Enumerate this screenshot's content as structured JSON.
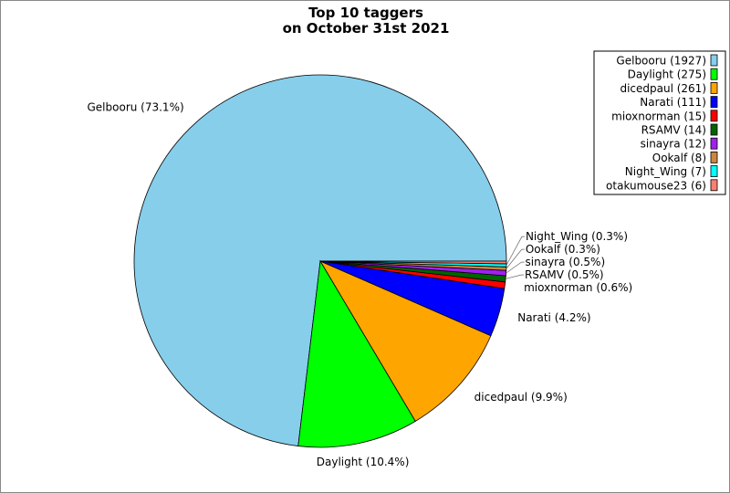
{
  "chart_data": {
    "type": "pie",
    "title": [
      "Top 10 taggers",
      "on October 31st 2021"
    ],
    "start_angle": "east, counter-clockwise",
    "legend_position": "top-right",
    "slices": [
      {
        "name": "Gelbooru",
        "value": 1927,
        "color": "#87CEEB",
        "legend": "Gelbooru (1927)",
        "label": "Gelbooru (73.1%)"
      },
      {
        "name": "Daylight",
        "value": 275,
        "color": "#00FF00",
        "legend": "Daylight (275)",
        "label": "Daylight (10.4%)"
      },
      {
        "name": "dicedpaul",
        "value": 261,
        "color": "#FFA500",
        "legend": "dicedpaul (261)",
        "label": "dicedpaul (9.9%)"
      },
      {
        "name": "Narati",
        "value": 111,
        "color": "#0000FF",
        "legend": "Narati (111)",
        "label": "Narati (4.2%)"
      },
      {
        "name": "mioxnorman",
        "value": 15,
        "color": "#FF0000",
        "legend": "mioxnorman (15)",
        "label": "mioxnorman (0.6%)"
      },
      {
        "name": "RSAMV",
        "value": 14,
        "color": "#006400",
        "legend": "RSAMV (14)",
        "label": "RSAMV (0.5%)"
      },
      {
        "name": "sinayra",
        "value": 12,
        "color": "#A020F0",
        "legend": "sinayra (12)",
        "label": "sinayra (0.5%)"
      },
      {
        "name": "Ookalf",
        "value": 8,
        "color": "#CD853F",
        "legend": "Ookalf (8)",
        "label": "Ookalf (0.3%)"
      },
      {
        "name": "Night_Wing",
        "value": 7,
        "color": "#00FFFF",
        "legend": "Night_Wing (7)",
        "label": "Night_Wing (0.3%)"
      },
      {
        "name": "otakumouse23",
        "value": 6,
        "color": "#FA8072",
        "legend": "otakumouse23 (6)",
        "label": ""
      }
    ]
  }
}
